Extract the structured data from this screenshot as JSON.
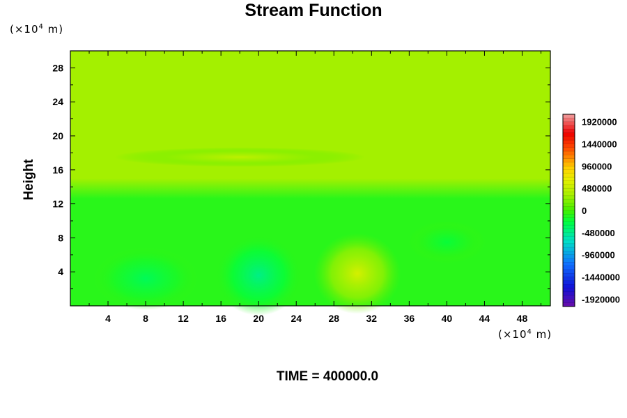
{
  "chart_data": {
    "type": "heatmap",
    "title": "Stream Function",
    "ylabel": "Height",
    "xunit": "(×10",
    "yunit": "(×10",
    "unit_exp": "4",
    "unit_tail": " m)",
    "footer": "TIME = 400000.0",
    "xlim": [
      0,
      51
    ],
    "ylim": [
      0,
      30
    ],
    "xticks": [
      4,
      8,
      12,
      16,
      20,
      24,
      28,
      32,
      36,
      40,
      44,
      48
    ],
    "yticks": [
      4,
      8,
      12,
      16,
      20,
      24,
      28
    ],
    "colorbar": {
      "range": [
        -2080000,
        2080000
      ],
      "labels": [
        1920000,
        1440000,
        960000,
        480000,
        0,
        -480000,
        -960000,
        -1440000,
        -1920000
      ]
    },
    "features": [
      {
        "kind": "positive-cell",
        "x": 30.5,
        "y": 3.8,
        "value": 560000
      },
      {
        "kind": "negative-cell",
        "x": 20.0,
        "y": 3.6,
        "value": -460000
      },
      {
        "kind": "negative-cell",
        "x": 8.0,
        "y": 3.2,
        "value": -320000
      },
      {
        "kind": "negative-cell",
        "x": 40.0,
        "y": 7.5,
        "value": -220000
      },
      {
        "kind": "positive-band",
        "x": 18.0,
        "y": 17.5,
        "value": 440000
      }
    ],
    "background_levels": {
      "lower": -100000,
      "upper": 320000
    }
  }
}
